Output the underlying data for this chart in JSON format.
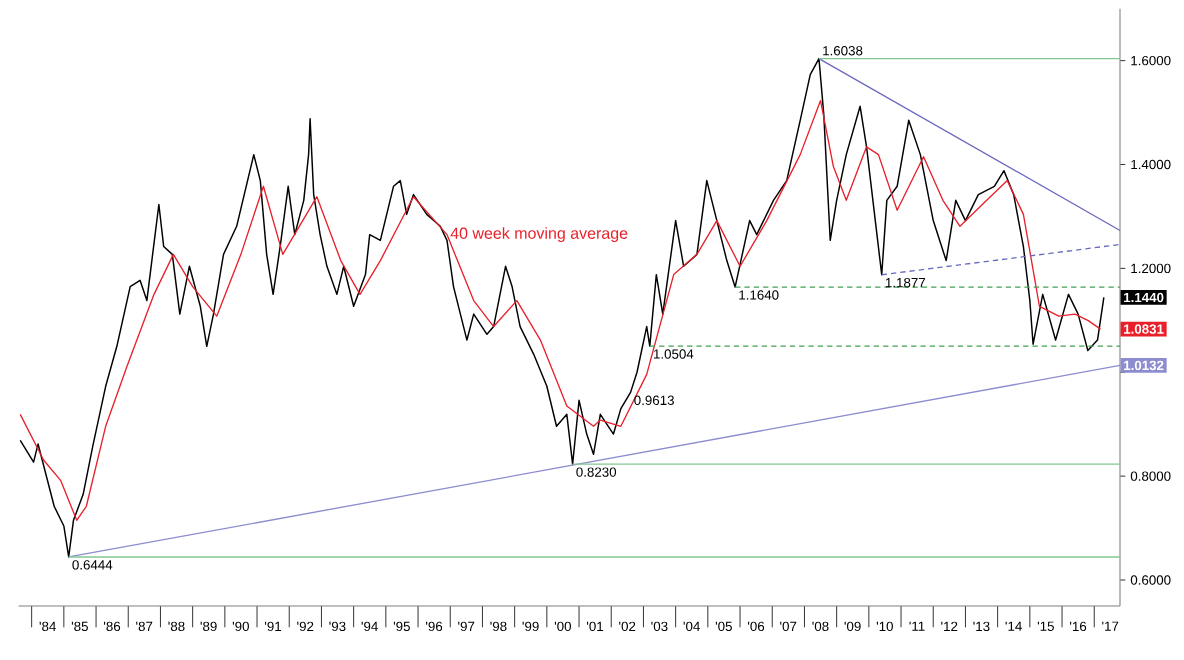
{
  "chart_data": {
    "type": "line",
    "xlim": [
      "1983-08-07",
      "2017-10-20"
    ],
    "ylim": [
      0.55,
      1.7
    ],
    "xticks": [
      {
        "value": "1984-01-01",
        "label": null
      },
      {
        "value": "1984-07-01",
        "label": "'84"
      },
      {
        "value": "1985-01-01",
        "label": null
      },
      {
        "value": "1985-07-01",
        "label": "'85"
      },
      {
        "value": "1986-01-01",
        "label": null
      },
      {
        "value": "1986-07-01",
        "label": "'86"
      },
      {
        "value": "1987-01-01",
        "label": null
      },
      {
        "value": "1987-07-01",
        "label": "'87"
      },
      {
        "value": "1988-01-01",
        "label": null
      },
      {
        "value": "1988-07-01",
        "label": "'88"
      },
      {
        "value": "1989-01-01",
        "label": null
      },
      {
        "value": "1989-07-01",
        "label": "'89"
      },
      {
        "value": "1990-01-01",
        "label": null
      },
      {
        "value": "1990-07-01",
        "label": "'90"
      },
      {
        "value": "1991-01-01",
        "label": null
      },
      {
        "value": "1991-07-01",
        "label": "'91"
      },
      {
        "value": "1992-01-01",
        "label": null
      },
      {
        "value": "1992-07-01",
        "label": "'92"
      },
      {
        "value": "1993-01-01",
        "label": null
      },
      {
        "value": "1993-07-01",
        "label": "'93"
      },
      {
        "value": "1994-01-01",
        "label": null
      },
      {
        "value": "1994-07-01",
        "label": "'94"
      },
      {
        "value": "1995-01-01",
        "label": null
      },
      {
        "value": "1995-07-01",
        "label": "'95"
      },
      {
        "value": "1996-01-01",
        "label": null
      },
      {
        "value": "1996-07-01",
        "label": "'96"
      },
      {
        "value": "1997-01-01",
        "label": null
      },
      {
        "value": "1997-07-01",
        "label": "'97"
      },
      {
        "value": "1998-01-01",
        "label": null
      },
      {
        "value": "1998-07-01",
        "label": "'98"
      },
      {
        "value": "1999-01-01",
        "label": null
      },
      {
        "value": "1999-07-01",
        "label": "'99"
      },
      {
        "value": "2000-01-01",
        "label": null
      },
      {
        "value": "2000-07-01",
        "label": "'00"
      },
      {
        "value": "2001-01-01",
        "label": null
      },
      {
        "value": "2001-07-01",
        "label": "'01"
      },
      {
        "value": "2002-01-01",
        "label": null
      },
      {
        "value": "2002-07-01",
        "label": "'02"
      },
      {
        "value": "2003-01-01",
        "label": null
      },
      {
        "value": "2003-07-01",
        "label": "'03"
      },
      {
        "value": "2004-01-01",
        "label": null
      },
      {
        "value": "2004-07-01",
        "label": "'04"
      },
      {
        "value": "2005-01-01",
        "label": null
      },
      {
        "value": "2005-07-01",
        "label": "'05"
      },
      {
        "value": "2006-01-01",
        "label": null
      },
      {
        "value": "2006-07-01",
        "label": "'06"
      },
      {
        "value": "2007-01-01",
        "label": null
      },
      {
        "value": "2007-07-01",
        "label": "'07"
      },
      {
        "value": "2008-01-01",
        "label": null
      },
      {
        "value": "2008-07-01",
        "label": "'08"
      },
      {
        "value": "2009-01-01",
        "label": null
      },
      {
        "value": "2009-07-01",
        "label": "'09"
      },
      {
        "value": "2010-01-01",
        "label": null
      },
      {
        "value": "2010-07-01",
        "label": "'10"
      },
      {
        "value": "2011-01-01",
        "label": null
      },
      {
        "value": "2011-07-01",
        "label": "'11"
      },
      {
        "value": "2012-01-01",
        "label": null
      },
      {
        "value": "2012-07-01",
        "label": "'12"
      },
      {
        "value": "2013-01-01",
        "label": null
      },
      {
        "value": "2013-07-01",
        "label": "'13"
      },
      {
        "value": "2014-01-01",
        "label": null
      },
      {
        "value": "2014-07-01",
        "label": "'14"
      },
      {
        "value": "2015-01-01",
        "label": null
      },
      {
        "value": "2015-07-01",
        "label": "'15"
      },
      {
        "value": "2016-01-01",
        "label": null
      },
      {
        "value": "2016-07-01",
        "label": "'16"
      },
      {
        "value": "2017-01-01",
        "label": null
      },
      {
        "value": "2017-07-01",
        "label": "'17"
      }
    ],
    "yticks": [
      {
        "value": 0.6,
        "label": "0.6000"
      },
      {
        "value": 0.8,
        "label": "0.8000"
      },
      {
        "value": 1.0,
        "label": null
      },
      {
        "value": 1.2,
        "label": "1.2000"
      },
      {
        "value": 1.4,
        "label": "1.4000"
      },
      {
        "value": 1.6,
        "label": "1.6000"
      }
    ],
    "grid": false,
    "marker": "none",
    "series": [
      {
        "color": "#000000",
        "x": [
          "1983-08-25",
          "1984-01-23",
          "1984-03-14",
          "1984-09-13",
          "1985-01-01",
          "1985-02-25",
          "1985-04-20",
          "1985-08-08",
          "1985-11-25",
          "1986-04-20",
          "1986-08-25",
          "1987-01-23",
          "1987-05-15",
          "1987-07-31",
          "1987-12-14",
          "1988-02-07",
          "1988-05-15",
          "1988-08-08",
          "1988-11-25",
          "1989-03-29",
          "1989-06-10",
          "1989-08-25",
          "1989-12-17",
          "1990-05-15",
          "1990-11-25",
          "1991-02-07",
          "1991-04-20",
          "1991-07-02",
          "1991-09-20",
          "1991-12-20",
          "1992-03-04",
          "1992-06-14",
          "1992-08-08",
          "1992-08-25",
          "1992-10-05",
          "1992-12-17",
          "1993-03-04",
          "1993-06-25",
          "1993-09-10",
          "1994-01-01",
          "1994-05-15",
          "1994-07-02",
          "1994-10-31",
          "1995-03-29",
          "1995-06-14",
          "1995-08-25",
          "1995-11-10",
          "1996-04-09",
          "1996-09-10",
          "1996-11-25",
          "1997-02-07",
          "1997-07-09",
          "1997-09-24",
          "1998-02-21",
          "1998-05-08",
          "1998-09-20",
          "1998-12-03",
          "1999-03-04",
          "1999-08-04",
          "2000-01-01",
          "2000-04-20",
          "2000-08-15",
          "2000-10-20",
          "2001-01-01",
          "2001-03-29",
          "2001-06-14",
          "2001-08-30",
          "2002-01-26",
          "2002-04-20",
          "2002-08-08",
          "2002-10-20",
          "2003-02-07",
          "2003-03-14",
          "2003-05-27",
          "2003-08-08",
          "2004-01-01",
          "2004-04-01",
          "2004-08-30",
          "2004-12-20",
          "2005-04-13",
          "2005-08-04",
          "2005-11-06",
          "2006-04-20",
          "2006-07-09",
          "2007-01-15",
          "2007-06-14",
          "2007-11-14",
          "2008-03-07",
          "2008-06-14",
          "2008-08-08",
          "2008-10-20",
          "2009-01-01",
          "2009-04-20",
          "2009-09-24",
          "2009-12-06",
          "2010-05-27",
          "2010-07-24",
          "2010-11-18",
          "2011-03-29",
          "2011-08-08",
          "2012-01-01",
          "2012-05-27",
          "2012-09-13",
          "2013-01-01",
          "2013-05-27",
          "2013-11-25",
          "2014-03-14",
          "2014-07-02",
          "2014-10-20",
          "2015-01-01",
          "2015-02-07",
          "2015-05-27",
          "2015-10-20",
          "2016-03-14",
          "2016-07-02",
          "2016-10-20",
          "2017-02-07",
          "2017-04-20"
        ],
        "values": [
          0.869,
          0.827,
          0.862,
          0.742,
          0.704,
          0.6444,
          0.715,
          0.765,
          0.858,
          0.973,
          1.05,
          1.165,
          1.177,
          1.138,
          1.323,
          1.242,
          1.227,
          1.112,
          1.204,
          1.127,
          1.05,
          1.112,
          1.227,
          1.281,
          1.419,
          1.369,
          1.227,
          1.15,
          1.242,
          1.358,
          1.265,
          1.331,
          1.419,
          1.488,
          1.342,
          1.265,
          1.204,
          1.15,
          1.204,
          1.127,
          1.188,
          1.265,
          1.254,
          1.358,
          1.369,
          1.304,
          1.342,
          1.304,
          1.281,
          1.254,
          1.165,
          1.062,
          1.112,
          1.073,
          1.088,
          1.204,
          1.165,
          1.088,
          1.035,
          0.973,
          0.896,
          0.919,
          0.823,
          0.946,
          0.881,
          0.842,
          0.919,
          0.881,
          0.93,
          0.9613,
          1.0,
          1.088,
          1.0504,
          1.188,
          1.112,
          1.292,
          1.204,
          1.227,
          1.369,
          1.292,
          1.215,
          1.164,
          1.292,
          1.265,
          1.331,
          1.369,
          1.485,
          1.573,
          1.6038,
          1.496,
          1.254,
          1.331,
          1.419,
          1.512,
          1.434,
          1.1877,
          1.331,
          1.358,
          1.485,
          1.419,
          1.292,
          1.215,
          1.331,
          1.292,
          1.342,
          1.358,
          1.388,
          1.342,
          1.242,
          1.138,
          1.054,
          1.15,
          1.062,
          1.15,
          1.112,
          1.042,
          1.062,
          1.144
        ],
        "value_labels": [
          null,
          null,
          null,
          null,
          null,
          null,
          null,
          null,
          null,
          null,
          null,
          null,
          null,
          null,
          null,
          null,
          null,
          null,
          null,
          null,
          null,
          null,
          null,
          null,
          null,
          null,
          null,
          null,
          null,
          null,
          null,
          null,
          null,
          null,
          null,
          null,
          null,
          null,
          null,
          null,
          null,
          null,
          null,
          null,
          null,
          null,
          null,
          null,
          null,
          null,
          null,
          null,
          null,
          null,
          null,
          null,
          null,
          null,
          null,
          null,
          null,
          null,
          null,
          null,
          null,
          null,
          null,
          null,
          null,
          null,
          null,
          null,
          null,
          null,
          null,
          null,
          null,
          null,
          null,
          null,
          null,
          null,
          null,
          null,
          null,
          null,
          null,
          null,
          null,
          null,
          null,
          null,
          null,
          null,
          null,
          null,
          null,
          null,
          null,
          null,
          null,
          null,
          null,
          null,
          null,
          null,
          null,
          null,
          null,
          null,
          null,
          null,
          null,
          null,
          null,
          null,
          null,
          "1.1440"
        ]
      },
      {
        "color": "#e8202a",
        "x": [
          "1983-08-25",
          "1984-05-15",
          "1984-11-25",
          "1985-05-27",
          "1985-09-13",
          "1986-04-20",
          "1986-12-17",
          "1987-10-20",
          "1988-05-27",
          "1989-01-01",
          "1989-10-01",
          "1990-07-02",
          "1991-03-14",
          "1991-10-20",
          "1992-11-10",
          "1993-08-08",
          "1994-03-14",
          "1994-10-31",
          "1995-11-10",
          "1996-11-25",
          "1997-09-24",
          "1998-05-08",
          "1999-01-26",
          "1999-10-20",
          "2000-08-15",
          "2001-06-14",
          "2001-08-30",
          "2002-04-20",
          "2003-02-07",
          "2003-12-10",
          "2004-08-30",
          "2005-04-13",
          "2006-01-01",
          "2006-10-31",
          "2007-11-14",
          "2008-07-02",
          "2008-11-25",
          "2009-04-20",
          "2009-12-06",
          "2010-04-20",
          "2010-11-18",
          "2011-09-13",
          "2012-04-20",
          "2012-10-31",
          "2013-08-30",
          "2014-04-20",
          "2014-10-20",
          "2015-04-20",
          "2015-11-25",
          "2016-05-27",
          "2016-10-20",
          "2017-03-14"
        ],
        "values": [
          0.919,
          0.831,
          0.792,
          0.715,
          0.742,
          0.896,
          1.011,
          1.15,
          1.227,
          1.165,
          1.108,
          1.227,
          1.358,
          1.227,
          1.338,
          1.215,
          1.15,
          1.215,
          1.338,
          1.265,
          1.138,
          1.088,
          1.138,
          1.062,
          0.935,
          0.896,
          0.908,
          0.896,
          0.996,
          1.188,
          1.227,
          1.292,
          1.204,
          1.292,
          1.419,
          1.523,
          1.396,
          1.331,
          1.434,
          1.419,
          1.312,
          1.415,
          1.331,
          1.281,
          1.331,
          1.369,
          1.304,
          1.127,
          1.108,
          1.112,
          1.1,
          1.0831
        ],
        "value_labels": [
          null,
          null,
          null,
          null,
          null,
          null,
          null,
          null,
          null,
          null,
          null,
          null,
          null,
          null,
          null,
          null,
          null,
          null,
          null,
          null,
          null,
          null,
          null,
          null,
          null,
          null,
          null,
          null,
          null,
          null,
          null,
          null,
          null,
          null,
          null,
          null,
          null,
          null,
          null,
          null,
          null,
          null,
          null,
          null,
          null,
          null,
          null,
          null,
          null,
          null,
          null,
          "1.0831"
        ]
      },
      {
        "color": "#8c8cd0",
        "x": [
          "1985-02-25",
          "2017-10-20"
        ],
        "values": [
          0.6444,
          1.0132
        ],
        "value_labels": [
          null,
          "1.0132"
        ]
      },
      {
        "color": "#6a6ac0",
        "x": [
          "2008-06-14",
          "2017-10-20"
        ],
        "values": [
          1.6038,
          1.273
        ]
      },
      {
        "color": "#6a6ac0",
        "line_style": "dashed",
        "x": [
          "2010-05-27",
          "2017-10-20"
        ],
        "values": [
          1.1877,
          1.246
        ]
      },
      {
        "color": "#80c890",
        "x": [
          "2008-06-14",
          "2017-10-20"
        ],
        "values": [
          1.6038,
          1.6038
        ]
      },
      {
        "color": "#80c890",
        "x": [
          "2000-10-20",
          "2017-10-20"
        ],
        "values": [
          0.823,
          0.823
        ]
      },
      {
        "color": "#80c890",
        "x": [
          "1985-02-25",
          "2017-10-20"
        ],
        "values": [
          0.6444,
          0.6444
        ]
      },
      {
        "color": "#40a050",
        "line_style": "dashed",
        "x": [
          "2005-11-06",
          "2017-10-20"
        ],
        "values": [
          1.164,
          1.164
        ]
      },
      {
        "color": "#40a050",
        "line_style": "dashed",
        "x": [
          "2003-03-14",
          "2017-10-20"
        ],
        "values": [
          1.0504,
          1.0504
        ]
      }
    ],
    "annotations": [
      {
        "text": "0.6444",
        "x": "1985-02-25",
        "y": 0.6444
      },
      {
        "text": "0.8230",
        "x": "2000-10-20",
        "y": 0.823
      },
      {
        "text": "0.9613",
        "x": "2002-08-08",
        "y": 0.9613
      },
      {
        "text": "1.0504",
        "x": "2003-03-14",
        "y": 1.0504
      },
      {
        "text": "1.1640",
        "x": "2005-11-06",
        "y": 1.164
      },
      {
        "text": "1.1877",
        "x": "2010-05-27",
        "y": 1.1877
      },
      {
        "text": "1.6038",
        "x": "2008-06-14",
        "y": 1.6038
      },
      {
        "text": "40 week moving average",
        "x": "1996-11-25",
        "y": 1.265
      }
    ]
  }
}
